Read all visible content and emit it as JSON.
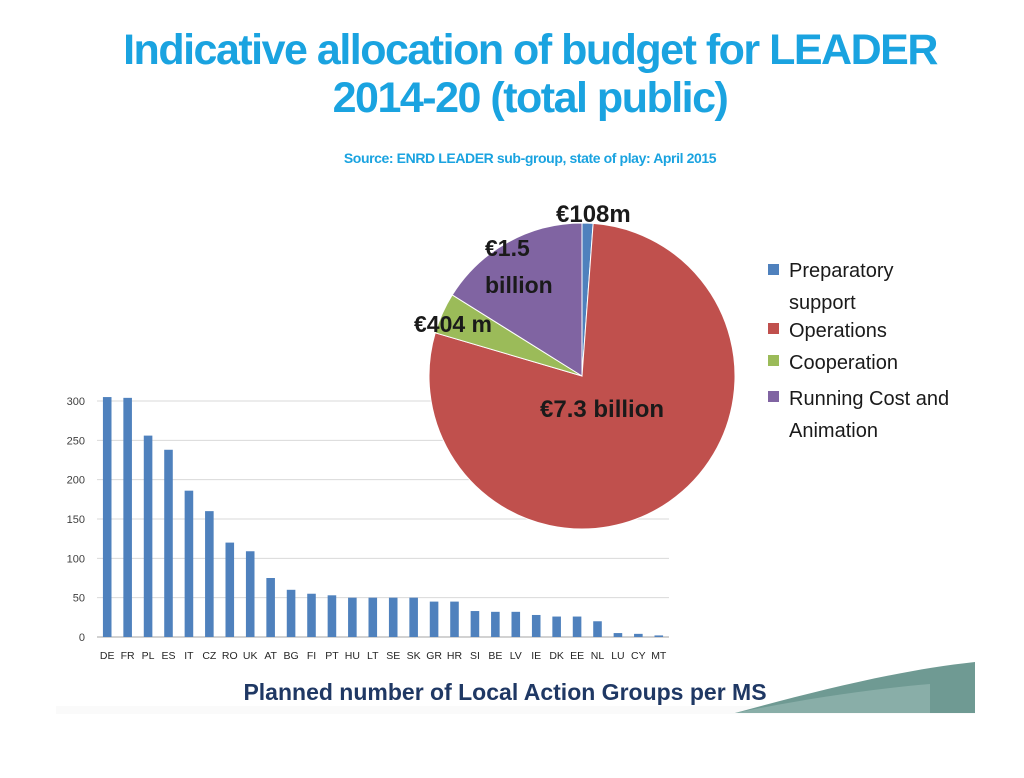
{
  "slide": {
    "title_line1": "Indicative allocation of budget for LEADER",
    "title_line2": "2014-20 (total public)",
    "source": "Source: ENRD LEADER sub-group, state of play: April 2015"
  },
  "colors": {
    "title": "#1aa3e0",
    "bar": "#4f81bd",
    "preparatory": "#4f81bd",
    "operations": "#c0504d",
    "cooperation": "#9bbb59",
    "running": "#8064a2",
    "decor_teal": "#5f8f87"
  },
  "chart_data": [
    {
      "type": "pie",
      "title": "",
      "slices": [
        {
          "name": "Preparatory support",
          "value": 0.108,
          "label": "€108m"
        },
        {
          "name": "Operations",
          "value": 7.3,
          "label": "€7.3 billion"
        },
        {
          "name": "Cooperation",
          "value": 0.404,
          "label": "€404 m"
        },
        {
          "name": "Running Cost and Animation",
          "value": 1.5,
          "label_line1": "€1.5",
          "label_line2": "billion"
        }
      ],
      "unit": "EUR billion",
      "legend": [
        {
          "line1": "Preparatory",
          "line2": "support"
        },
        {
          "line1": "Operations"
        },
        {
          "line1": "Cooperation"
        },
        {
          "line1": "Running Cost and",
          "line2": "Animation"
        }
      ],
      "legend_position": "right"
    },
    {
      "type": "bar",
      "title": "Planned number of Local Action Groups per MS",
      "categories": [
        "DE",
        "FR",
        "PL",
        "ES",
        "IT",
        "CZ",
        "RO",
        "UK",
        "AT",
        "BG",
        "FI",
        "PT",
        "HU",
        "LT",
        "SE",
        "SK",
        "GR",
        "HR",
        "SI",
        "BE",
        "LV",
        "IE",
        "DK",
        "EE",
        "NL",
        "LU",
        "CY",
        "MT"
      ],
      "values": [
        305,
        304,
        256,
        238,
        186,
        160,
        120,
        109,
        75,
        60,
        55,
        53,
        50,
        50,
        50,
        50,
        45,
        45,
        33,
        32,
        32,
        28,
        26,
        26,
        20,
        5,
        4,
        2
      ],
      "ylim": [
        0,
        300
      ],
      "yticks": [
        "0",
        "50",
        "100",
        "150",
        "200",
        "250",
        "300"
      ],
      "grid": true,
      "xlabel": "",
      "ylabel": ""
    }
  ]
}
